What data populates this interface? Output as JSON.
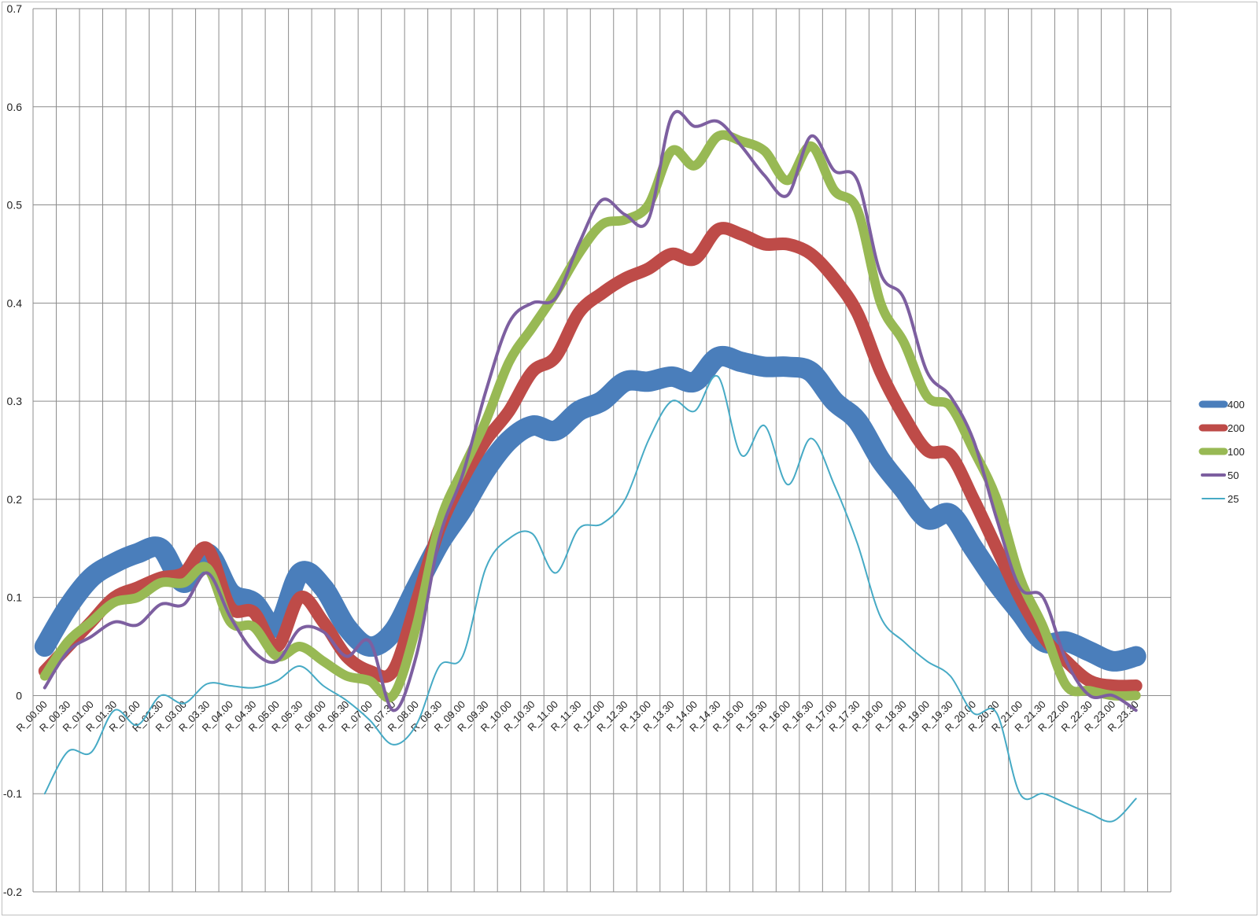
{
  "chart_data": {
    "type": "line",
    "title": "",
    "xlabel": "",
    "ylabel": "",
    "ylim": [
      -0.2,
      0.7
    ],
    "yticks": [
      -0.2,
      -0.1,
      0,
      0.1,
      0.2,
      0.3,
      0.4,
      0.5,
      0.6,
      0.7
    ],
    "grid": true,
    "legend_position": "right",
    "categories": [
      "R_00.00",
      "R_00.30",
      "R_01.00",
      "R_01.30",
      "R_02.00",
      "R_02.30",
      "R_03.00",
      "R_03.30",
      "R_04.00",
      "R_04.30",
      "R_05.00",
      "R_05.30",
      "R_06.00",
      "R_06.30",
      "R_07.00",
      "R_07.30",
      "R_08.00",
      "R_08.30",
      "R_09.00",
      "R_09.30",
      "R_10.00",
      "R_10.30",
      "R_11.00",
      "R_11.30",
      "R_12.00",
      "R_12.30",
      "R_13.00",
      "R_13.30",
      "R_14.00",
      "R_14.30",
      "R_15.00",
      "R_15.30",
      "R_16.00",
      "R_16.30",
      "R_17.00",
      "R_17.30",
      "R_18.00",
      "R_18.30",
      "R_19.00",
      "R_19.30",
      "R_20.00",
      "R_20.30",
      "R_21.00",
      "R_21.30",
      "R_22.00",
      "R_22.30",
      "R_23.00",
      "R_23.30"
    ],
    "series": [
      {
        "name": "400",
        "color": "#4a7ebb",
        "width": 26,
        "values": [
          0.05,
          0.09,
          0.12,
          0.135,
          0.145,
          0.15,
          0.115,
          0.145,
          0.105,
          0.095,
          0.07,
          0.125,
          0.11,
          0.07,
          0.05,
          0.065,
          0.11,
          0.155,
          0.19,
          0.23,
          0.26,
          0.275,
          0.27,
          0.29,
          0.3,
          0.32,
          0.32,
          0.325,
          0.32,
          0.345,
          0.34,
          0.335,
          0.335,
          0.33,
          0.3,
          0.28,
          0.24,
          0.21,
          0.18,
          0.185,
          0.15,
          0.115,
          0.085,
          0.055,
          0.055,
          0.045,
          0.035,
          0.04
        ]
      },
      {
        "name": "200",
        "color": "#be4b48",
        "width": 16,
        "values": [
          0.025,
          0.05,
          0.075,
          0.1,
          0.11,
          0.12,
          0.125,
          0.15,
          0.09,
          0.085,
          0.05,
          0.1,
          0.075,
          0.04,
          0.025,
          0.025,
          0.095,
          0.17,
          0.22,
          0.26,
          0.29,
          0.33,
          0.345,
          0.39,
          0.41,
          0.425,
          0.435,
          0.45,
          0.445,
          0.475,
          0.47,
          0.46,
          0.46,
          0.45,
          0.425,
          0.39,
          0.33,
          0.285,
          0.25,
          0.245,
          0.2,
          0.15,
          0.1,
          0.06,
          0.035,
          0.015,
          0.01,
          0.01
        ]
      },
      {
        "name": "100",
        "color": "#98b954",
        "width": 12,
        "values": [
          0.02,
          0.055,
          0.075,
          0.095,
          0.1,
          0.115,
          0.115,
          0.13,
          0.075,
          0.07,
          0.04,
          0.05,
          0.035,
          0.02,
          0.015,
          0.0,
          0.07,
          0.175,
          0.23,
          0.28,
          0.34,
          0.375,
          0.41,
          0.45,
          0.48,
          0.485,
          0.5,
          0.555,
          0.54,
          0.57,
          0.565,
          0.555,
          0.525,
          0.56,
          0.515,
          0.495,
          0.4,
          0.36,
          0.305,
          0.295,
          0.25,
          0.2,
          0.12,
          0.07,
          0.01,
          0.005,
          0.0,
          0.0
        ]
      },
      {
        "name": "50",
        "color": "#7d5fa0",
        "width": 4,
        "values": [
          0.008,
          0.045,
          0.06,
          0.075,
          0.072,
          0.093,
          0.093,
          0.125,
          0.08,
          0.045,
          0.035,
          0.068,
          0.065,
          0.04,
          0.055,
          -0.015,
          0.04,
          0.16,
          0.225,
          0.31,
          0.38,
          0.4,
          0.405,
          0.46,
          0.505,
          0.49,
          0.485,
          0.59,
          0.58,
          0.585,
          0.56,
          0.53,
          0.51,
          0.57,
          0.535,
          0.525,
          0.43,
          0.405,
          0.33,
          0.305,
          0.26,
          0.18,
          0.11,
          0.1,
          0.035,
          0.0,
          0.0,
          -0.015
        ]
      },
      {
        "name": "25",
        "color": "#46aac5",
        "width": 2,
        "values": [
          -0.1,
          -0.057,
          -0.058,
          -0.015,
          -0.03,
          0.0,
          -0.008,
          0.012,
          0.01,
          0.008,
          0.015,
          0.03,
          0.01,
          -0.005,
          -0.025,
          -0.05,
          -0.03,
          0.03,
          0.04,
          0.13,
          0.16,
          0.165,
          0.125,
          0.17,
          0.175,
          0.2,
          0.26,
          0.3,
          0.29,
          0.325,
          0.245,
          0.275,
          0.215,
          0.262,
          0.215,
          0.155,
          0.08,
          0.055,
          0.035,
          0.02,
          -0.018,
          -0.018,
          -0.1,
          -0.1,
          -0.11,
          -0.12,
          -0.128,
          -0.105
        ]
      }
    ]
  }
}
